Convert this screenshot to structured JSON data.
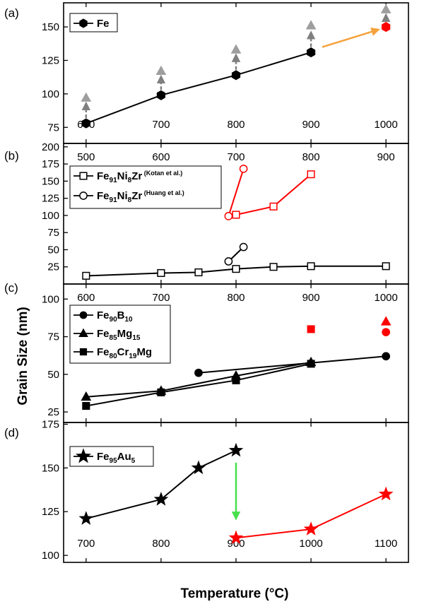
{
  "colors": {
    "black": "#000000",
    "red": "#ff0000",
    "gray": "#9e9e9e",
    "dashed_gray": "#7f7f7f",
    "orange": "#f5a23c",
    "green": "#49e04b"
  },
  "axes": {
    "xlabel": "Temperature (°C)",
    "ylabel": "Grain Size (nm)"
  },
  "chart_data": [
    {
      "type": "line",
      "panel": "(a)",
      "xlim": [
        570,
        1030
      ],
      "ylim": [
        63,
        168
      ],
      "yticks": [
        75,
        100,
        125,
        150
      ],
      "xticks": [
        600,
        700,
        800,
        900,
        1000
      ],
      "xtick_labels_position": "bottom",
      "legend": [
        {
          "name": "Fe",
          "sub": "",
          "sup": "",
          "marker": "hexagon"
        }
      ],
      "series": [
        {
          "name": "Fe",
          "marker": "hexagon",
          "color": "#000000",
          "line": true,
          "x": [
            600,
            700,
            800,
            900
          ],
          "y": [
            78,
            99,
            114,
            131
          ]
        },
        {
          "name": "Fe (red)",
          "marker": "hexagon",
          "color": "#ff0000",
          "line": false,
          "x": [
            1000
          ],
          "y": [
            150
          ]
        },
        {
          "name": "gray triangles",
          "marker": "triangle-up",
          "color": "#9e9e9e",
          "line": false,
          "x": [
            600,
            700,
            800,
            900,
            1000
          ],
          "y": [
            97,
            117,
            133,
            151,
            163
          ]
        }
      ],
      "arrows": [
        {
          "style": "dashed",
          "color": "#7f7f7f",
          "from": [
            600,
            82
          ],
          "to": [
            600,
            93
          ]
        },
        {
          "style": "dashed",
          "color": "#7f7f7f",
          "from": [
            700,
            103
          ],
          "to": [
            700,
            113
          ]
        },
        {
          "style": "dashed",
          "color": "#7f7f7f",
          "from": [
            800,
            118
          ],
          "to": [
            800,
            129
          ]
        },
        {
          "style": "dashed",
          "color": "#7f7f7f",
          "from": [
            900,
            135
          ],
          "to": [
            900,
            146
          ]
        },
        {
          "style": "dashed",
          "color": "#7f7f7f",
          "from": [
            1000,
            154
          ],
          "to": [
            1000,
            159
          ]
        },
        {
          "style": "solid",
          "color": "#f5a23c",
          "from": [
            915,
            135
          ],
          "to": [
            990,
            148
          ]
        }
      ]
    },
    {
      "type": "line",
      "panel": "(b)",
      "xlim": [
        470,
        930
      ],
      "ylim": [
        0,
        205
      ],
      "yticks": [
        25,
        50,
        75,
        100,
        125,
        150,
        175,
        200
      ],
      "xticks": [
        500,
        600,
        700,
        800,
        900
      ],
      "xtick_labels_position": "top",
      "legend": [
        {
          "name": "Fe",
          "sub": "91",
          "name2": "Ni",
          "sub2": "8",
          "name3": "Zr",
          "sup": "(Kotan et al.)",
          "marker": "square-open"
        },
        {
          "name": "Fe",
          "sub": "91",
          "name2": "Ni",
          "sub2": "8",
          "name3": "Zr",
          "sup": "(Huang et al.)",
          "marker": "circle-open"
        }
      ],
      "series": [
        {
          "name": "Kotan black",
          "marker": "square-open",
          "color": "#000000",
          "line": true,
          "x": [
            500,
            600,
            650,
            700,
            750,
            800,
            900
          ],
          "y": [
            12,
            16,
            17,
            22,
            25,
            26,
            26
          ]
        },
        {
          "name": "Kotan red",
          "marker": "square-open",
          "color": "#ff0000",
          "line": true,
          "x": [
            700,
            750,
            800
          ],
          "y": [
            101,
            113,
            160
          ]
        },
        {
          "name": "Huang black",
          "marker": "circle-open",
          "color": "#000000",
          "line": true,
          "x": [
            690,
            710
          ],
          "y": [
            33,
            54
          ]
        },
        {
          "name": "Huang red",
          "marker": "circle-open",
          "color": "#ff0000",
          "line": true,
          "x": [
            690,
            710
          ],
          "y": [
            99,
            168
          ]
        }
      ]
    },
    {
      "type": "line",
      "panel": "(c)",
      "xlim": [
        570,
        1030
      ],
      "ylim": [
        18,
        110
      ],
      "yticks": [
        25,
        50,
        75,
        100
      ],
      "xticks": [
        600,
        700,
        800,
        900,
        1000
      ],
      "xtick_labels_position": "top",
      "legend": [
        {
          "name": "Fe",
          "sub": "90",
          "name2": "B",
          "sub2": "10",
          "marker": "circle"
        },
        {
          "name": "Fe",
          "sub": "85",
          "name2": "Mg",
          "sub2": "15",
          "marker": "triangle-up"
        },
        {
          "name": "Fe",
          "sub": "80",
          "name2": "Cr",
          "sub2": "19",
          "name3": "Mg",
          "marker": "square"
        }
      ],
      "series": [
        {
          "name": "Fe90B10",
          "marker": "circle",
          "color": "#000000",
          "line": true,
          "x": [
            750,
            1000
          ],
          "y": [
            51,
            62
          ]
        },
        {
          "name": "Fe85Mg15",
          "marker": "triangle-up",
          "color": "#000000",
          "line": true,
          "x": [
            600,
            700,
            800,
            900
          ],
          "y": [
            35,
            39,
            49,
            58
          ]
        },
        {
          "name": "Fe80Cr19Mg",
          "marker": "square",
          "color": "#000000",
          "line": true,
          "x": [
            600,
            700,
            800,
            900
          ],
          "y": [
            29,
            38,
            46,
            57
          ]
        },
        {
          "name": "Fe90B10 red",
          "marker": "circle",
          "color": "#ff0000",
          "line": false,
          "x": [
            1000
          ],
          "y": [
            78
          ]
        },
        {
          "name": "Fe85Mg15 red",
          "marker": "triangle-up",
          "color": "#ff0000",
          "line": false,
          "x": [
            1000
          ],
          "y": [
            85
          ]
        },
        {
          "name": "Fe80Cr19Mg red",
          "marker": "square",
          "color": "#ff0000",
          "line": false,
          "x": [
            900
          ],
          "y": [
            80
          ]
        }
      ]
    },
    {
      "type": "line",
      "panel": "(d)",
      "xlim": [
        670,
        1130
      ],
      "ylim": [
        96,
        176
      ],
      "yticks": [
        100,
        125,
        150,
        175
      ],
      "xticks": [
        700,
        800,
        900,
        1000,
        1100
      ],
      "xtick_labels_position": "bottom",
      "legend": [
        {
          "name": "Fe",
          "sub": "95",
          "name2": "Au",
          "sub2": "5",
          "marker": "star"
        }
      ],
      "series": [
        {
          "name": "Fe95Au5 black",
          "marker": "star",
          "color": "#000000",
          "line": true,
          "x": [
            700,
            800,
            850,
            900
          ],
          "y": [
            121,
            132,
            150,
            160
          ]
        },
        {
          "name": "Fe95Au5 red",
          "marker": "star",
          "color": "#ff0000",
          "line": true,
          "x": [
            900,
            1000,
            1100
          ],
          "y": [
            110,
            115,
            135
          ]
        }
      ],
      "arrows": [
        {
          "style": "solid",
          "color": "#49e04b",
          "from": [
            900,
            153
          ],
          "to": [
            900,
            121
          ]
        }
      ]
    }
  ]
}
